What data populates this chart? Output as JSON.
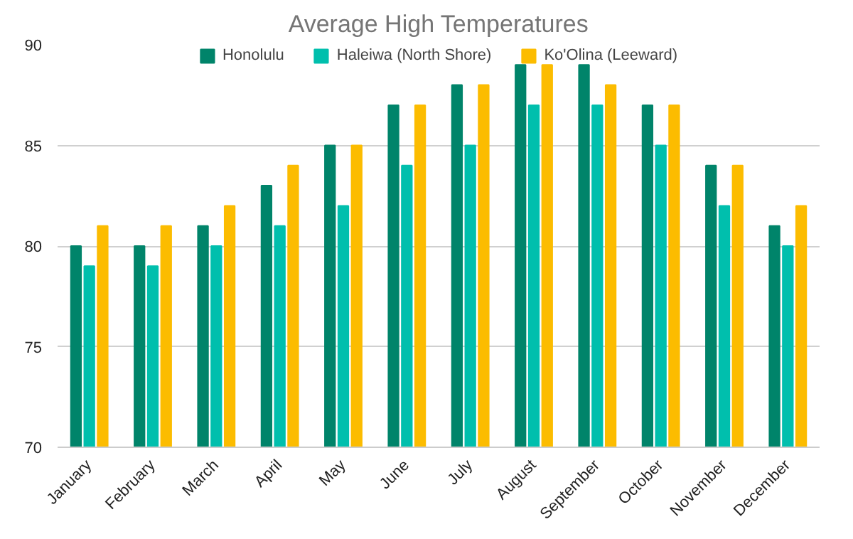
{
  "chart_data": {
    "type": "bar",
    "title": "Average High Temperatures",
    "categories": [
      "January",
      "February",
      "March",
      "April",
      "May",
      "June",
      "July",
      "August",
      "September",
      "October",
      "November",
      "December"
    ],
    "series": [
      {
        "name": "Honolulu",
        "color": "#00846a",
        "values": [
          80,
          80,
          81,
          83,
          85,
          87,
          88,
          89,
          89,
          87,
          84,
          81
        ]
      },
      {
        "name": "Haleiwa (North Shore)",
        "color": "#00bfad",
        "values": [
          79,
          79,
          80,
          81,
          82,
          84,
          85,
          87,
          87,
          85,
          82,
          80
        ]
      },
      {
        "name": "Ko'Olina (Leeward)",
        "color": "#fcbc00",
        "values": [
          81,
          81,
          82,
          84,
          85,
          87,
          88,
          89,
          88,
          87,
          84,
          82
        ]
      }
    ],
    "ylim": [
      70,
      90
    ],
    "yticks": [
      70,
      75,
      80,
      85,
      90
    ],
    "grid": "y",
    "legend": "top"
  }
}
